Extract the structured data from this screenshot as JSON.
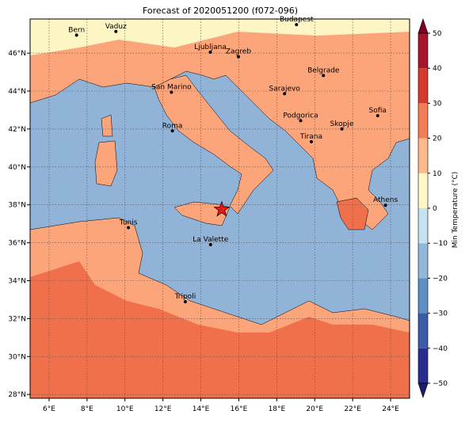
{
  "map": {
    "title": "Forecast of 2020051200 (f072-096)",
    "xlim": [
      5,
      25
    ],
    "ylim": [
      27.8,
      47.8
    ],
    "xticks": [
      {
        "value": 6,
        "label": "6°E"
      },
      {
        "value": 8,
        "label": "8°E"
      },
      {
        "value": 10,
        "label": "10°E"
      },
      {
        "value": 12,
        "label": "12°E"
      },
      {
        "value": 14,
        "label": "14°E"
      },
      {
        "value": 16,
        "label": "16°E"
      },
      {
        "value": 18,
        "label": "18°E"
      },
      {
        "value": 20,
        "label": "20°E"
      },
      {
        "value": 22,
        "label": "22°E"
      },
      {
        "value": 24,
        "label": "24°E"
      }
    ],
    "yticks": [
      {
        "value": 28,
        "label": "28°N"
      },
      {
        "value": 30,
        "label": "30°N"
      },
      {
        "value": 32,
        "label": "32°N"
      },
      {
        "value": 34,
        "label": "34°N"
      },
      {
        "value": 36,
        "label": "36°N"
      },
      {
        "value": 38,
        "label": "38°N"
      },
      {
        "value": 40,
        "label": "40°N"
      },
      {
        "value": 42,
        "label": "42°N"
      },
      {
        "value": 44,
        "label": "44°N"
      },
      {
        "value": 46,
        "label": "46°N"
      }
    ],
    "grid": true,
    "cities": [
      {
        "name": "Bern",
        "lon": 7.45,
        "lat": 46.95
      },
      {
        "name": "Vaduz",
        "lon": 9.52,
        "lat": 47.14
      },
      {
        "name": "Budapest",
        "lon": 19.04,
        "lat": 47.5
      },
      {
        "name": "Ljubljana",
        "lon": 14.5,
        "lat": 46.05
      },
      {
        "name": "Zagreb",
        "lon": 15.98,
        "lat": 45.81
      },
      {
        "name": "Belgrade",
        "lon": 20.46,
        "lat": 44.82
      },
      {
        "name": "San Marino",
        "lon": 12.45,
        "lat": 43.94
      },
      {
        "name": "Sarajevo",
        "lon": 18.41,
        "lat": 43.86
      },
      {
        "name": "Sofia",
        "lon": 23.32,
        "lat": 42.7
      },
      {
        "name": "Roma",
        "lon": 12.5,
        "lat": 41.9
      },
      {
        "name": "Podgorica",
        "lon": 19.26,
        "lat": 42.44
      },
      {
        "name": "Skopje",
        "lon": 21.43,
        "lat": 42.0
      },
      {
        "name": "Tirana",
        "lon": 19.82,
        "lat": 41.33
      },
      {
        "name": "Athens",
        "lon": 23.73,
        "lat": 37.98
      },
      {
        "name": "Tunis",
        "lon": 10.18,
        "lat": 36.8
      },
      {
        "name": "La Valette",
        "lon": 14.51,
        "lat": 35.9
      },
      {
        "name": "Tripoli",
        "lon": 13.18,
        "lat": 32.89
      }
    ],
    "marker": {
      "lon": 15.1,
      "lat": 37.75,
      "color": "#e31a1c"
    },
    "colorbar": {
      "label": "Min Temperature (°C)",
      "lim": [
        -50,
        50
      ],
      "ticks": [
        {
          "value": -50,
          "label": "−50"
        },
        {
          "value": -40,
          "label": "−40"
        },
        {
          "value": -30,
          "label": "−30"
        },
        {
          "value": -20,
          "label": "−20"
        },
        {
          "value": -10,
          "label": "−10"
        },
        0,
        10,
        20,
        30,
        40,
        50
      ]
    }
  }
}
